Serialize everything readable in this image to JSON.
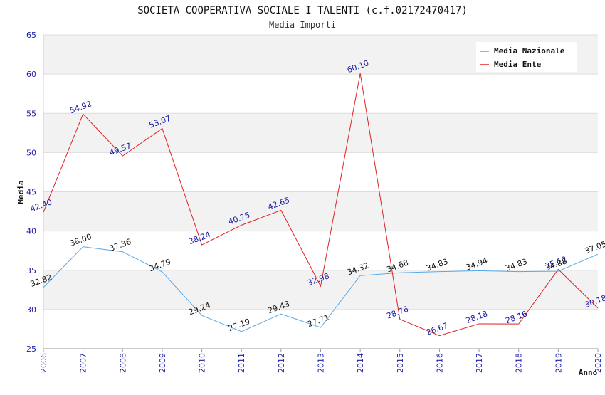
{
  "chart_data": {
    "type": "line",
    "title": "SOCIETA COOPERATIVA SOCIALE I TALENTI (c.f.02172470417)",
    "subtitle": "Media Importi",
    "xlabel": "Anno",
    "ylabel": "Media",
    "ylim": [
      25,
      65
    ],
    "yticks": [
      25,
      30,
      35,
      40,
      45,
      50,
      55,
      60,
      65
    ],
    "categories": [
      "2006",
      "2007",
      "2008",
      "2009",
      "2010",
      "2011",
      "2012",
      "2013",
      "2014",
      "2015",
      "2016",
      "2017",
      "2018",
      "2019",
      "2020"
    ],
    "series": [
      {
        "name": "Media Nazionale",
        "color": "#5aa8e6",
        "values": [
          32.82,
          38.0,
          37.36,
          34.79,
          29.24,
          27.19,
          29.43,
          27.71,
          34.32,
          34.68,
          34.83,
          34.94,
          34.83,
          34.88,
          37.05
        ],
        "labels": [
          "32.82",
          "38.00",
          "37.36",
          "34.79",
          "29.24",
          "27.19",
          "29.43",
          "27.71",
          "34.32",
          "34.68",
          "34.83",
          "34.94",
          "34.83",
          "34.88",
          "37.05"
        ]
      },
      {
        "name": "Media Ente",
        "color": "#e02020",
        "values": [
          42.4,
          54.92,
          49.57,
          53.07,
          38.24,
          40.75,
          42.65,
          32.98,
          60.1,
          28.76,
          26.67,
          28.18,
          28.16,
          35.12,
          30.18
        ],
        "labels": [
          "42.40",
          "54.92",
          "49.57",
          "53.07",
          "38.24",
          "40.75",
          "42.65",
          "32.98",
          "60.10",
          "28.76",
          "26.67",
          "28.18",
          "28.16",
          "35.12",
          "30.18"
        ]
      }
    ],
    "legend_position": "top-right",
    "grid": true
  }
}
